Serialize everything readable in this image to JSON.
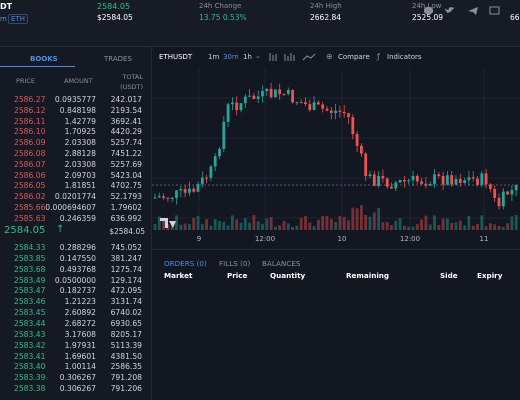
{
  "header": {
    "pair": "DT",
    "badge_prefix": "m",
    "badge": "ETH",
    "last_price": "2584.05",
    "last_price_usd": "$2584.05",
    "stats": [
      {
        "label": "24h Change",
        "value": "13.75 0.53%"
      },
      {
        "label": "24h High",
        "value": "2662.84"
      },
      {
        "label": "24h Low",
        "value": "2525.09"
      }
    ],
    "cut_value": "66."
  },
  "book": {
    "tabs": [
      "BOOKS",
      "TRADES"
    ],
    "columns": [
      "PRICE",
      "AMOUNT",
      "TOTAL (USDT)"
    ],
    "asks": [
      [
        "2586.27",
        "0.0935777",
        "242.017"
      ],
      [
        "2586.12",
        "0.848198",
        "2193.54"
      ],
      [
        "2586.11",
        "1.42779",
        "3692.41"
      ],
      [
        "2586.10",
        "1.70925",
        "4420.29"
      ],
      [
        "2586.09",
        "2.03308",
        "5257.74"
      ],
      [
        "2586.08",
        "2.88128",
        "7451.22"
      ],
      [
        "2586.07",
        "2.03308",
        "5257.69"
      ],
      [
        "2586.06",
        "2.09703",
        "5423.04"
      ],
      [
        "2586.05",
        "1.81851",
        "4702.75"
      ],
      [
        "2586.02",
        "0.0201774",
        "52.1793"
      ],
      [
        "2585.66",
        "0.000694607",
        "1.79602"
      ],
      [
        "2585.63",
        "0.246359",
        "636.992"
      ]
    ],
    "mid_price": "2584.05",
    "mid_arrow": "↑",
    "mid_usd": "$2584.05",
    "bids": [
      [
        "2584.33",
        "0.288296",
        "745.052"
      ],
      [
        "2583.85",
        "0.147550",
        "381.247"
      ],
      [
        "2583.68",
        "0.493768",
        "1275.74"
      ],
      [
        "2583.49",
        "0.0500000",
        "129.174"
      ],
      [
        "2583.47",
        "0.182737",
        "472.095"
      ],
      [
        "2583.46",
        "1.21223",
        "3131.74"
      ],
      [
        "2583.45",
        "2.60892",
        "6740.02"
      ],
      [
        "2583.44",
        "2.68272",
        "6930.65"
      ],
      [
        "2583.43",
        "3.17608",
        "8205.17"
      ],
      [
        "2583.42",
        "1.97931",
        "5113.39"
      ],
      [
        "2583.41",
        "1.69601",
        "4381.50"
      ],
      [
        "2583.40",
        "1.00114",
        "2586.35"
      ],
      [
        "2583.39",
        "0.306267",
        "791.208"
      ],
      [
        "2583.38",
        "0.306267",
        "791.206"
      ]
    ]
  },
  "chart": {
    "symbol": "ETHUSDT",
    "intervals": [
      "1m",
      "30m",
      "1h"
    ],
    "active_interval": 1,
    "compare": "Compare",
    "indicators": "Indicators",
    "x_labels": [
      "9",
      "12:00",
      "10",
      "12:00",
      "11"
    ]
  },
  "orders": {
    "tabs": [
      "ORDERS (0)",
      "FILLS (0)",
      "BALANCES"
    ],
    "columns": [
      "Market",
      "Price",
      "Quantity",
      "Remaining",
      "Side",
      "Expiry"
    ]
  }
}
